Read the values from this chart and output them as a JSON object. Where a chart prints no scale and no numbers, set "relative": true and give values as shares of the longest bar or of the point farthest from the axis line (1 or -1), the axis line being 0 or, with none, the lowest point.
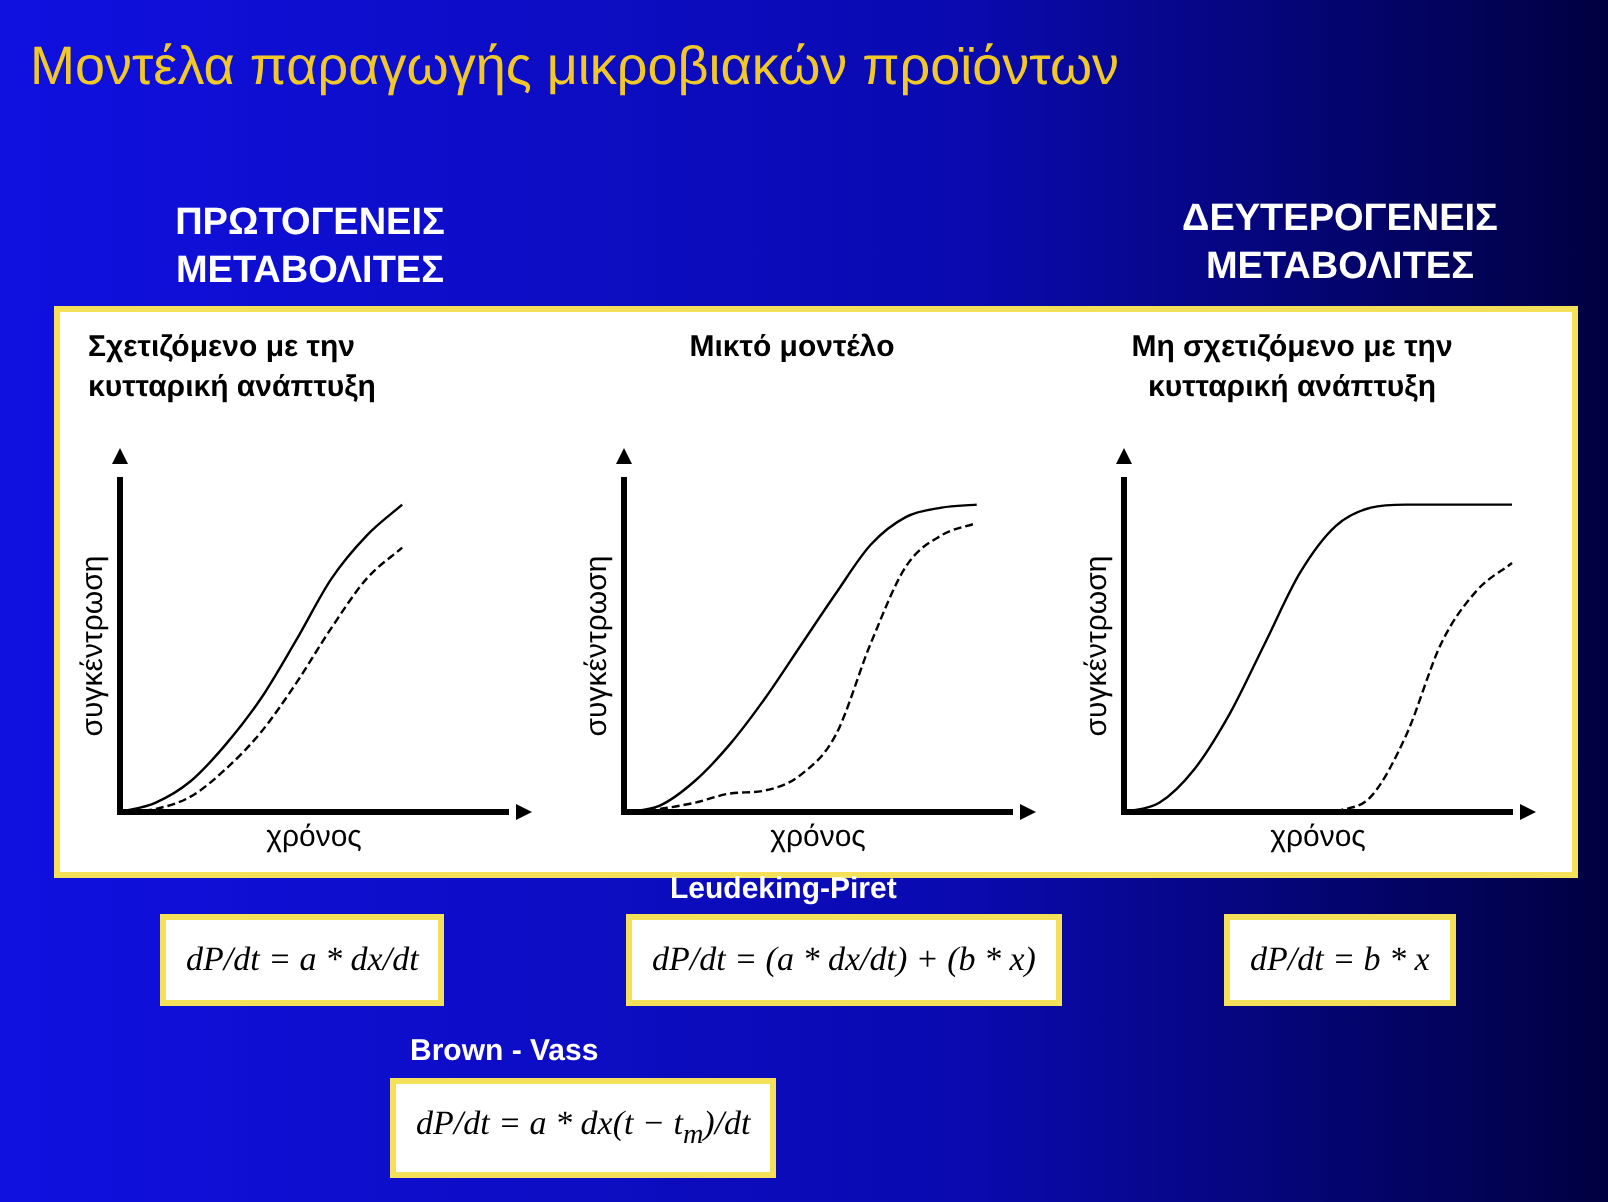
{
  "chart_data": [
    {
      "type": "line",
      "title": "Σχετιζόμενο με την κυτταρική ανάπτυξη",
      "xlabel": "χρόνος",
      "ylabel": "συγκέντρωση",
      "relative": true,
      "tick_labels": false,
      "grid": false,
      "legend": false,
      "marker": "none",
      "categories": [
        null,
        null,
        null,
        null,
        null,
        null,
        null,
        null,
        null,
        null,
        null,
        null
      ],
      "series": [
        {
          "color": "#000000",
          "line_style": "solid",
          "values": [
            0,
            0.03,
            0.1,
            0.22,
            0.37,
            0.56,
            0.76,
            0.9,
            1,
            null,
            null,
            null
          ]
        },
        {
          "color": "#000000",
          "line_style": "dashed",
          "values": [
            0,
            0.01,
            0.05,
            0.14,
            0.26,
            0.42,
            0.6,
            0.76,
            0.86,
            null,
            null,
            null
          ]
        }
      ],
      "annotations": [
        "Μοντέλα παραγωγής μικροβιακών προϊόντων",
        "ΠΡΩΤΟΓΕΝΕΙΣ ΜΕΤΑΒΟΛΙΤΕΣ",
        "dP/dt = a * dx/dt",
        "Brown - Vass",
        "dP/dt = a * dx(t − t$_{m}$)/dt"
      ]
    },
    {
      "type": "line",
      "title": "Μικτό μοντέλο",
      "xlabel": "χρόνος",
      "ylabel": "συγκέντρωση",
      "relative": true,
      "tick_labels": false,
      "grid": false,
      "legend": false,
      "marker": "none",
      "categories": [
        null,
        null,
        null,
        null,
        null,
        null,
        null,
        null,
        null,
        null,
        null,
        null
      ],
      "series": [
        {
          "color": "#000000",
          "line_style": "solid",
          "values": [
            0,
            0.02,
            0.1,
            0.22,
            0.37,
            0.54,
            0.71,
            0.87,
            0.96,
            0.99,
            1,
            null
          ]
        },
        {
          "color": "#000000",
          "line_style": "dashed",
          "values": [
            0,
            0.01,
            0.03,
            0.06,
            0.07,
            0.12,
            0.25,
            0.55,
            0.8,
            0.9,
            0.94,
            null
          ]
        }
      ],
      "annotations": [
        "Leudeking-Piret",
        "dP/dt = (a * dx/dt) + (b * x)"
      ]
    },
    {
      "type": "line",
      "title": "Μη σχετιζόμενο με την κυτταρική ανάπτυξη",
      "xlabel": "χρόνος",
      "ylabel": "συγκέντρωση",
      "relative": true,
      "tick_labels": false,
      "grid": false,
      "legend": false,
      "marker": "none",
      "categories": [
        null,
        null,
        null,
        null,
        null,
        null,
        null,
        null,
        null,
        null,
        null,
        null
      ],
      "series": [
        {
          "color": "#000000",
          "line_style": "solid",
          "values": [
            0,
            0.03,
            0.14,
            0.32,
            0.55,
            0.78,
            0.93,
            0.99,
            1,
            1,
            1,
            1
          ]
        },
        {
          "color": "#000000",
          "line_style": "dashed",
          "values": [
            null,
            null,
            null,
            null,
            null,
            null,
            0,
            0.05,
            0.25,
            0.55,
            0.72,
            0.81
          ]
        }
      ],
      "annotations": [
        "ΔΕΥΤΕΡΟΓΕΝΕΙΣ ΜΕΤΑΒΟΛΙΤΕΣ",
        "dP/dt = b * x"
      ]
    }
  ]
}
